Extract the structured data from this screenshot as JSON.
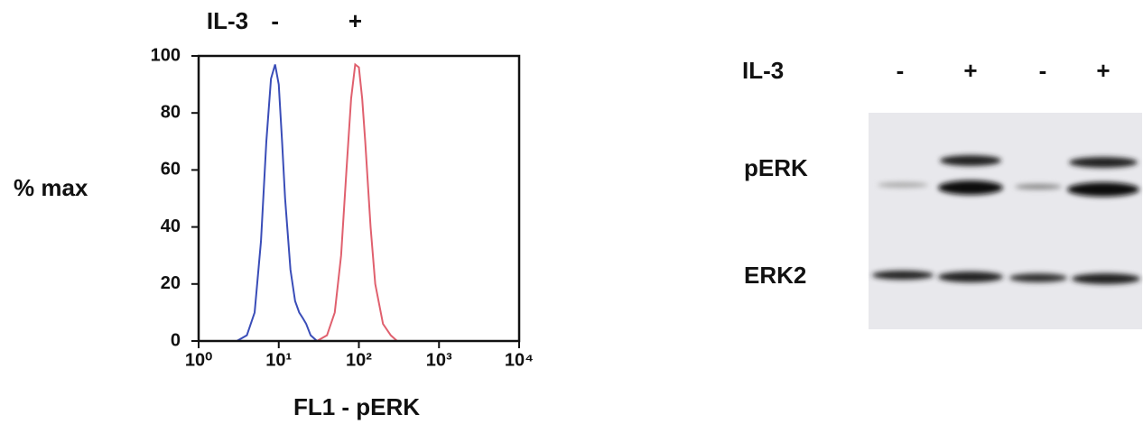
{
  "chart_data": {
    "type": "line",
    "xlabel": "FL1 - pERK",
    "ylabel": "% max",
    "annotation": "IL-3",
    "xscale": "log",
    "xlim": [
      1,
      10000
    ],
    "xticks": [
      {
        "value": 1,
        "label": "10⁰"
      },
      {
        "value": 10,
        "label": "10¹"
      },
      {
        "value": 100,
        "label": "10²"
      },
      {
        "value": 1000,
        "label": "10³"
      },
      {
        "value": 10000,
        "label": "10⁴"
      }
    ],
    "ylim": [
      0,
      100
    ],
    "yticks": [
      0,
      20,
      40,
      60,
      80,
      100
    ],
    "series": [
      {
        "name": "-",
        "color": "#3a4db8",
        "x": [
          1,
          3,
          4,
          5,
          6,
          7,
          8,
          9,
          10,
          11,
          12,
          14,
          16,
          18,
          20,
          22,
          25,
          30,
          100,
          10000
        ],
        "values": [
          0,
          0,
          2,
          10,
          35,
          70,
          92,
          97,
          90,
          70,
          50,
          25,
          14,
          10,
          8,
          6,
          2,
          0,
          0,
          0
        ]
      },
      {
        "name": "+",
        "color": "#e0606e",
        "x": [
          1,
          30,
          40,
          50,
          60,
          70,
          80,
          90,
          100,
          110,
          120,
          140,
          160,
          200,
          250,
          300,
          10000
        ],
        "values": [
          0,
          0,
          2,
          10,
          30,
          60,
          85,
          97,
          96,
          85,
          70,
          40,
          20,
          6,
          2,
          0,
          0
        ]
      }
    ]
  },
  "blot": {
    "treatment_label": "IL-3",
    "lanes": [
      "-",
      "+",
      "-",
      "+"
    ],
    "rows": [
      "pERK",
      "ERK2"
    ]
  }
}
